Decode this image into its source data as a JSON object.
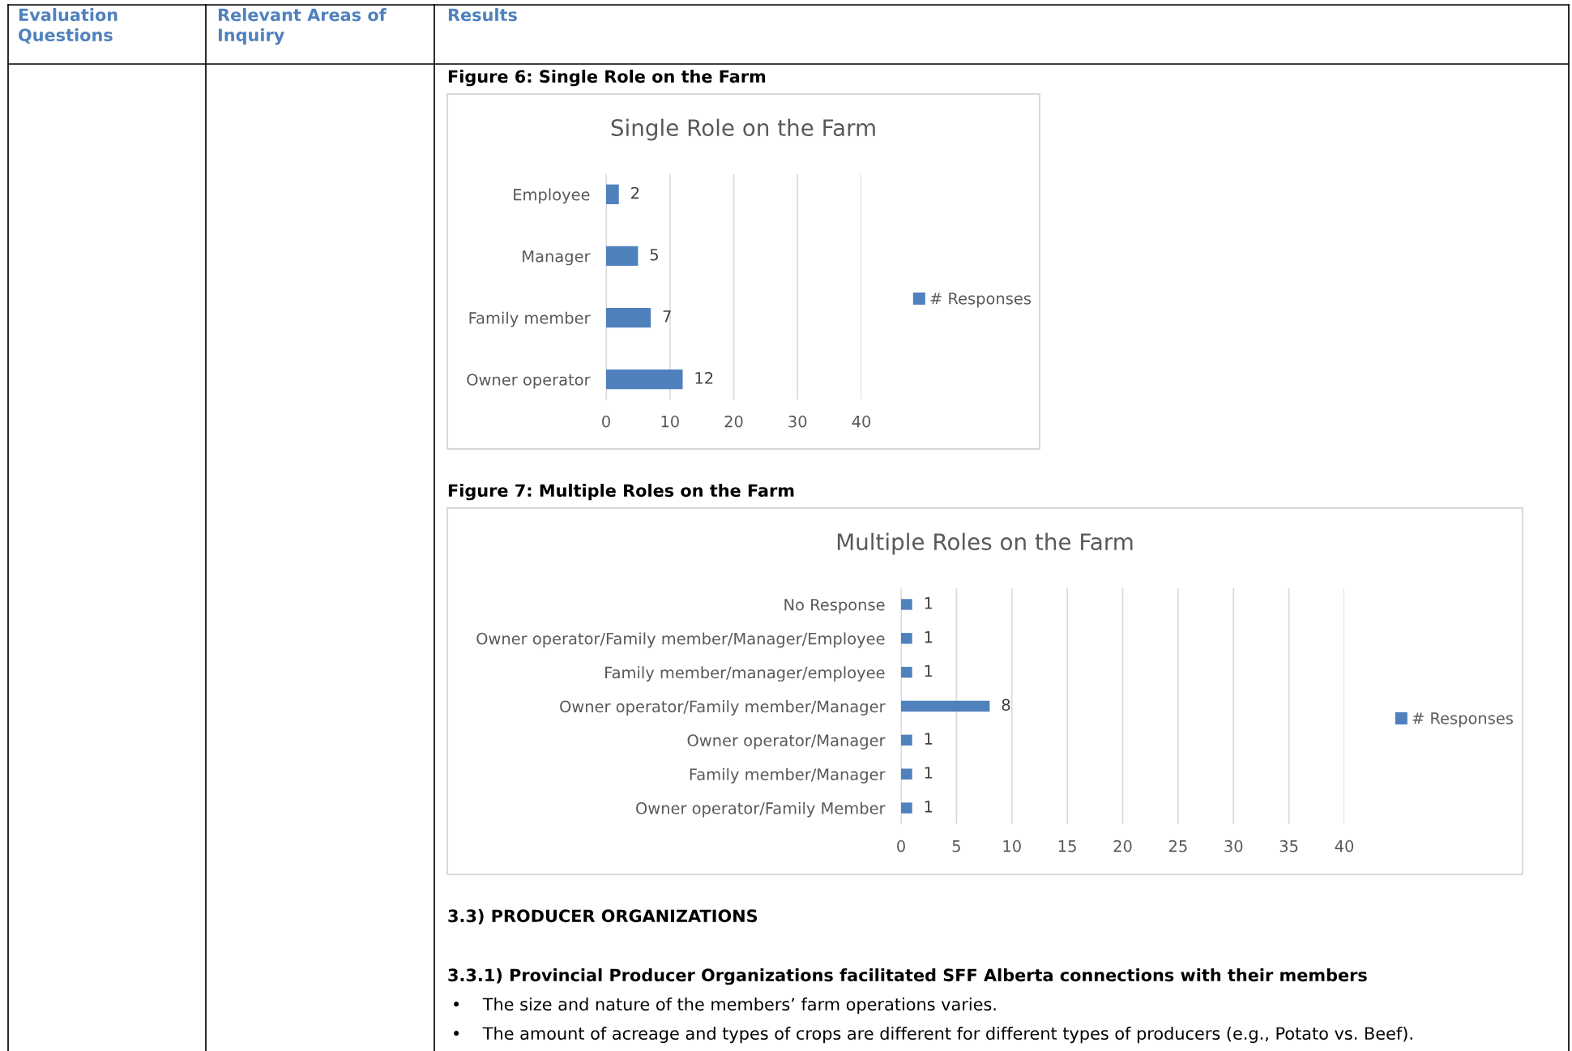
{
  "chart_data": [
    {
      "type": "bar",
      "orientation": "horizontal",
      "title": "Single Role on the Farm",
      "categories": [
        "Employee",
        "Manager",
        "Family member",
        "Owner operator"
      ],
      "series": [
        {
          "name": "# Responses",
          "color": "#4f81bd",
          "values": [
            2,
            5,
            7,
            12
          ]
        }
      ],
      "xlim": [
        0,
        40
      ],
      "xticks": [
        0,
        10,
        20,
        30,
        40
      ],
      "grid": "x",
      "legend": "right",
      "data_labels": true,
      "annotations": [
        "Evaluation\nQuestions",
        "Relevant Areas of\nInquiry",
        "Results",
        "Figure 6: Single Role on the Farm"
      ]
    },
    {
      "type": "bar",
      "orientation": "horizontal",
      "title": "Multiple Roles on the Farm",
      "categories": [
        "No Response",
        "Owner operator/Family member/Manager/Employee",
        "Family member/manager/employee",
        "Owner operator/Family member/Manager",
        "Owner operator/Manager",
        "Family member/Manager",
        "Owner operator/Family Member"
      ],
      "series": [
        {
          "name": "# Responses",
          "color": "#4f81bd",
          "values": [
            1,
            1,
            1,
            8,
            1,
            1,
            1
          ]
        }
      ],
      "xlim": [
        0,
        40
      ],
      "xticks": [
        0,
        5,
        10,
        15,
        20,
        25,
        30,
        35,
        40
      ],
      "grid": "x",
      "legend": "right",
      "data_labels": true,
      "annotations": [
        "Figure 7: Multiple Roles on the Farm",
        "3.3) PRODUCER ORGANIZATIONS",
        "3.3.1) Provincial Producer Organizations facilitated SFF Alberta connections with their members",
        "•    The size and nature of the members’ farm operations varies.",
        "•    The amount of acreage and types of crops are different for different types of producers (e.g., Potato vs. Beef)."
      ]
    }
  ]
}
